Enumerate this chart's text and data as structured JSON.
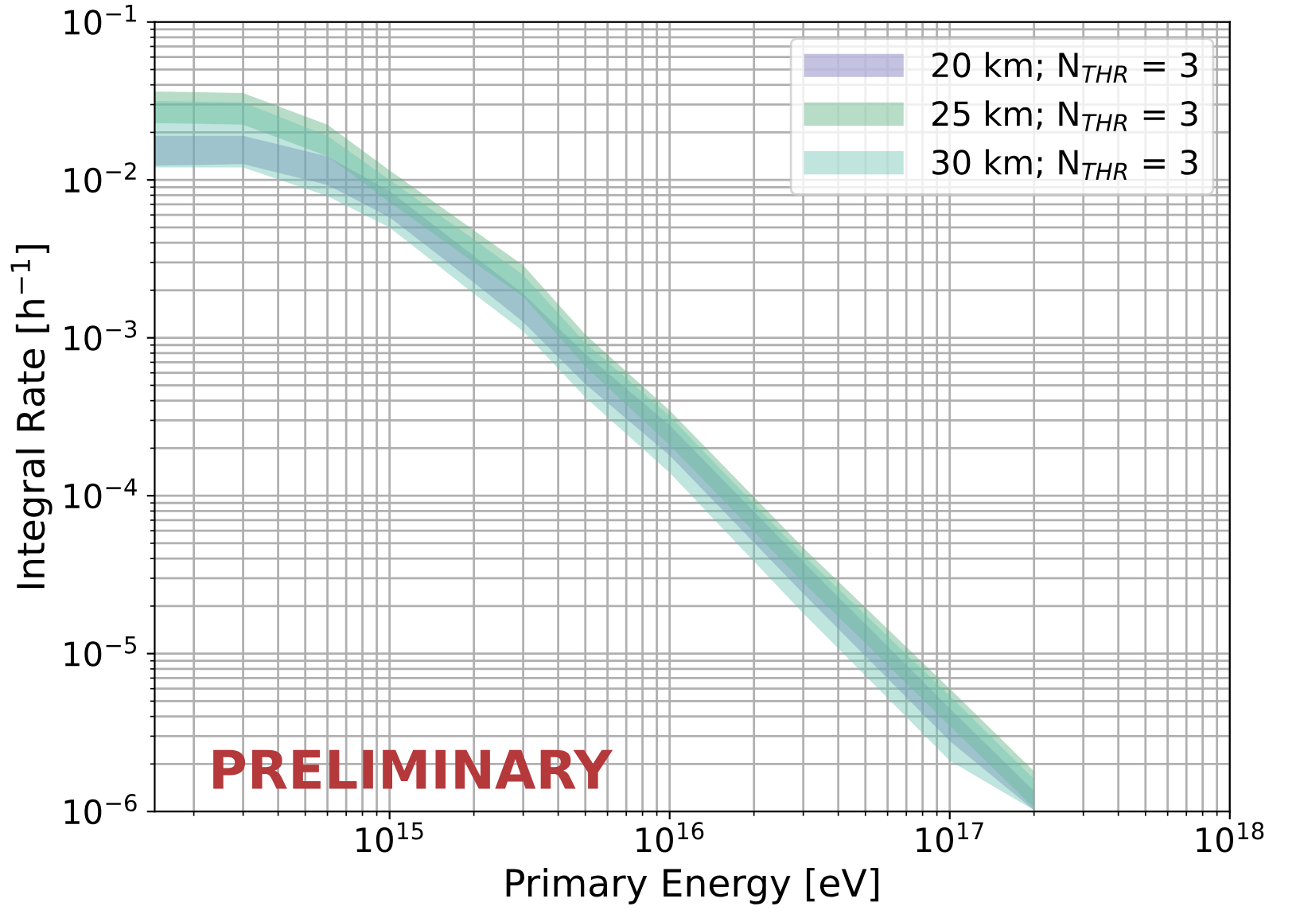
{
  "chart_data": {
    "type": "area",
    "xlabel": "Primary Energy [eV]",
    "ylabel": "Integral Rate [h$^{−1}$]",
    "log": "xy",
    "grid": true,
    "legend": "top right",
    "xlim": [
      145000000000000.0,
      1e+18
    ],
    "ylim": [
      1e-06,
      0.1
    ],
    "xticks": [
      {
        "value": 1000000000000000.0,
        "label": "10$^{15}$"
      },
      {
        "value": 1e+16,
        "label": "10$^{16}$"
      },
      {
        "value": 1e+17,
        "label": "10$^{17}$"
      },
      {
        "value": 1e+18,
        "label": "10$^{18}$"
      }
    ],
    "yticks": [
      {
        "value": 1e-06,
        "label": "10$^{−6}$"
      },
      {
        "value": 1e-05,
        "label": "10$^{−5}$"
      },
      {
        "value": 0.0001,
        "label": "10$^{−4}$"
      },
      {
        "value": 0.001,
        "label": "10$^{−3}$"
      },
      {
        "value": 0.01,
        "label": "10$^{−2}$"
      },
      {
        "value": 0.1,
        "label": "10$^{−1}$"
      }
    ],
    "x": [
      145000000000000.0,
      300000000000000.0,
      600000000000000.0,
      1000000000000000.0,
      2000000000000000.0,
      3000000000000000.0,
      5000000000000000.0,
      1e+16,
      3e+16,
      1e+17,
      2e+17
    ],
    "series": [
      {
        "name": "20 km; N$_{THR}$ = 3",
        "color": "#7b78bb",
        "values": [
          null,
          null,
          null,
          null,
          null,
          null,
          null,
          null,
          null,
          null,
          null
        ],
        "upper": [
          0.019,
          0.019,
          0.0141,
          0.0085,
          0.0033,
          0.0019,
          0.00079,
          0.00028,
          3.8e-05,
          4.5e-06,
          1.35e-06
        ],
        "lower": [
          0.0123,
          0.0126,
          0.0093,
          0.0058,
          0.00224,
          0.00126,
          0.00051,
          0.00018,
          2.4e-05,
          2.8e-06,
          1.02e-06
        ]
      },
      {
        "name": "25 km; N$_{THR}$ = 3",
        "color": "#5fb283",
        "values": [
          null,
          null,
          null,
          null,
          null,
          null,
          null,
          null,
          null,
          null,
          null
        ],
        "upper": [
          0.0363,
          0.0355,
          0.0224,
          0.0115,
          0.0048,
          0.00288,
          0.00105,
          0.000347,
          4.68e-05,
          6e-06,
          1.8e-06
        ],
        "lower": [
          0.0229,
          0.0224,
          0.0141,
          0.00724,
          0.003,
          0.00182,
          0.00066,
          0.000209,
          2.82e-05,
          3.5e-06,
          1.05e-06
        ]
      },
      {
        "name": "30 km; N$_{THR}$ = 3",
        "color": "#72c6b5",
        "values": [
          null,
          null,
          null,
          null,
          null,
          null,
          null,
          null,
          null,
          null,
          null
        ],
        "upper": [
          0.0316,
          0.031,
          0.019,
          0.01,
          0.0042,
          0.0025,
          0.00093,
          0.00032,
          4.2e-05,
          5.4e-06,
          1.6e-06
        ],
        "lower": [
          0.012,
          0.012,
          0.0079,
          0.005,
          0.0019,
          0.0011,
          0.00042,
          0.00014,
          1.8e-05,
          2.1e-06,
          1.02e-06
        ]
      }
    ],
    "annotations": [
      "PRELIMINARY"
    ]
  }
}
